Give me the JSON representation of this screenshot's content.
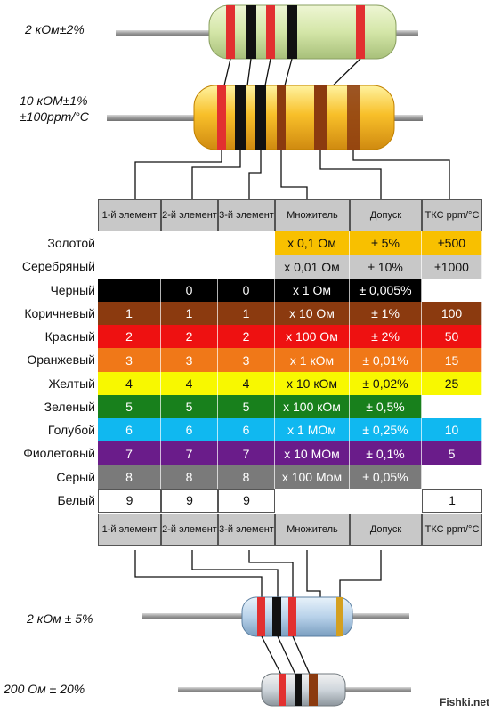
{
  "resistors": [
    {
      "label": [
        "2 кОм±2%"
      ]
    },
    {
      "label": [
        "10 кОМ±1%",
        "±100ppm/°C"
      ]
    },
    {
      "label": [
        "2 кОм ± 5%"
      ]
    },
    {
      "label": [
        "200 Ом ± 20%"
      ]
    }
  ],
  "colors": {
    "black": "#000000",
    "brown": "#8b3a0f",
    "red": "#ee1111",
    "orange": "#f07818",
    "yellow": "#f8f800",
    "green": "#18801c",
    "blue": "#10b8f0",
    "violet": "#6a1c8a",
    "gray": "#7a7a7a",
    "white": "#ffffff",
    "gold": "#f8c000",
    "silver": "#c8c8c8",
    "header": "#c8c8c8"
  },
  "table": {
    "headers": [
      "1-й элемент",
      "2-й элемент",
      "3-й элемент",
      "Множитель",
      "Допуск",
      "ТКС ppm/°C"
    ],
    "rows": [
      {
        "name": "Золотой",
        "color": "gold",
        "cells": [
          "",
          "",
          "",
          "x 0,1  Ом",
          "± 5%",
          "±500"
        ]
      },
      {
        "name": "Серебряный",
        "color": "silver",
        "cells": [
          "",
          "",
          "",
          "x 0,01  Ом",
          "± 10%",
          "±1000"
        ]
      },
      {
        "name": "Черный",
        "color": "black",
        "cells": [
          "",
          "0",
          "0",
          "x 1  Ом",
          "± 0,005%",
          ""
        ]
      },
      {
        "name": "Коричневый",
        "color": "brown",
        "cells": [
          "1",
          "1",
          "1",
          "x 10  Ом",
          "± 1%",
          "100"
        ]
      },
      {
        "name": "Красный",
        "color": "red",
        "cells": [
          "2",
          "2",
          "2",
          "x 100  Ом",
          "± 2%",
          "50"
        ]
      },
      {
        "name": "Оранжевый",
        "color": "orange",
        "cells": [
          "3",
          "3",
          "3",
          "x 1  кОм",
          "± 0,01%",
          "15"
        ]
      },
      {
        "name": "Желтый",
        "color": "yellow",
        "cells": [
          "4",
          "4",
          "4",
          "x 10  кОм",
          "± 0,02%",
          "25"
        ]
      },
      {
        "name": "Зеленый",
        "color": "green",
        "cells": [
          "5",
          "5",
          "5",
          "x 100  кОм",
          "± 0,5%",
          ""
        ]
      },
      {
        "name": "Голубой",
        "color": "blue",
        "cells": [
          "6",
          "6",
          "6",
          "x 1  МОм",
          "± 0,25%",
          "10"
        ]
      },
      {
        "name": "Фиолетовый",
        "color": "violet",
        "cells": [
          "7",
          "7",
          "7",
          "x 10  МОм",
          "± 0,1%",
          "5"
        ]
      },
      {
        "name": "Серый",
        "color": "gray",
        "cells": [
          "8",
          "8",
          "8",
          "x 100  Мом",
          "± 0,05%",
          ""
        ]
      },
      {
        "name": "Белый",
        "color": "white",
        "cells": [
          "9",
          "9",
          "9",
          "",
          "",
          "1"
        ]
      }
    ]
  },
  "watermark": "Fishki.net"
}
